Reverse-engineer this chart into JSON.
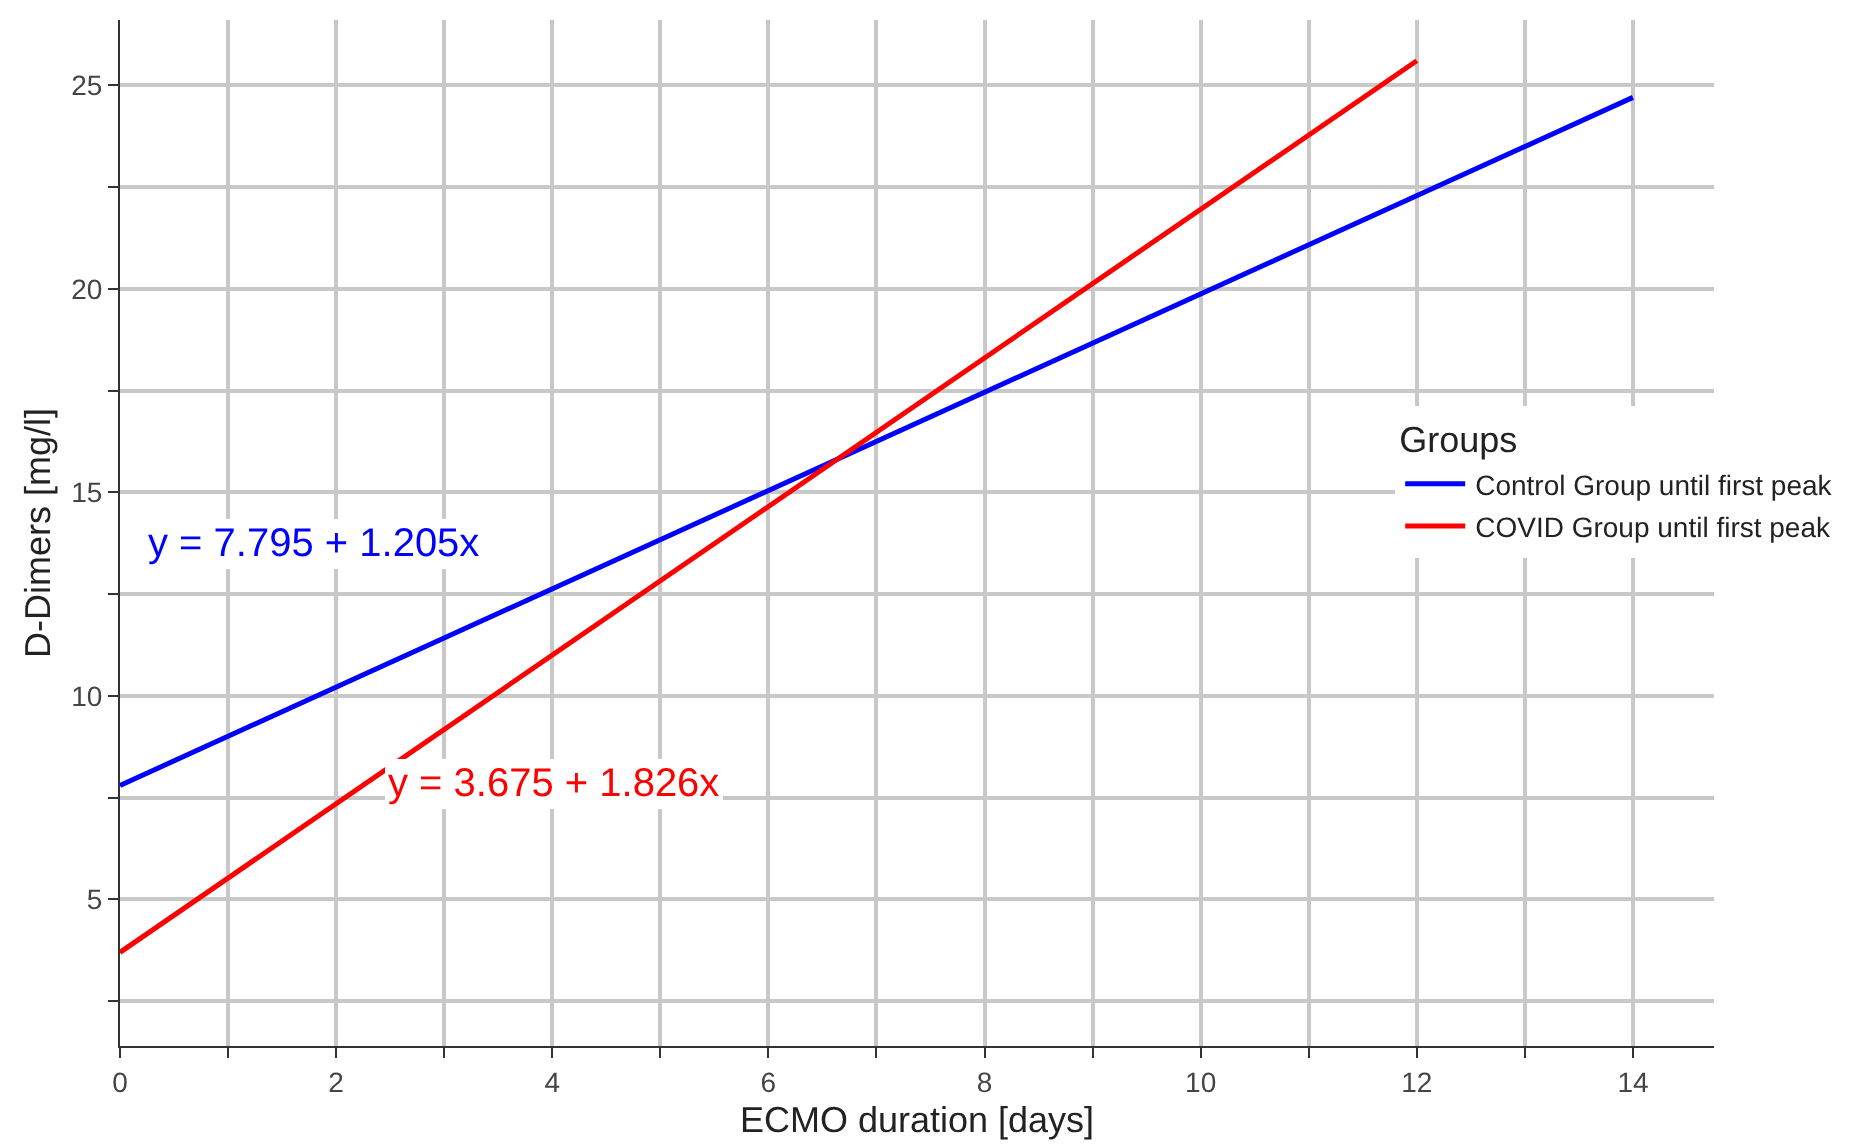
{
  "chart_data": {
    "type": "line",
    "xlabel": "ECMO duration [days]",
    "ylabel": "D-Dimers [mg/l]",
    "legend_title": "Groups",
    "series": [
      {
        "name": "Control Group until first peak",
        "color": "#0000ff",
        "x": [
          0,
          14
        ],
        "values": [
          7.8,
          24.7
        ]
      },
      {
        "name": "COVID Group until first peak",
        "color": "#ff0000",
        "x": [
          0,
          12
        ],
        "values": [
          3.7,
          25.6
        ]
      }
    ],
    "annotations": [
      "y = 7.795 + 1.205x",
      "y = 3.675 + 1.826x"
    ],
    "xlim": [
      0,
      14.75
    ],
    "ylim": [
      1.4,
      26.6
    ],
    "xticks": [
      0,
      {
        "value": 1,
        "label": null
      },
      2,
      {
        "value": 3,
        "label": null
      },
      4,
      {
        "value": 5,
        "label": null
      },
      6,
      {
        "value": 7,
        "label": null
      },
      8,
      {
        "value": 9,
        "label": null
      },
      10,
      {
        "value": 11,
        "label": null
      },
      12,
      {
        "value": 13,
        "label": null
      },
      14
    ],
    "yticks": [
      {
        "value": 2.5,
        "label": null
      },
      5,
      {
        "value": 7.5,
        "label": null
      },
      10,
      {
        "value": 12.5,
        "label": null
      },
      15,
      {
        "value": 17.5,
        "label": null
      },
      20,
      {
        "value": 22.5,
        "label": null
      },
      25
    ],
    "grid": true,
    "legend": "right",
    "marker": "none",
    "line_style": "solid"
  }
}
